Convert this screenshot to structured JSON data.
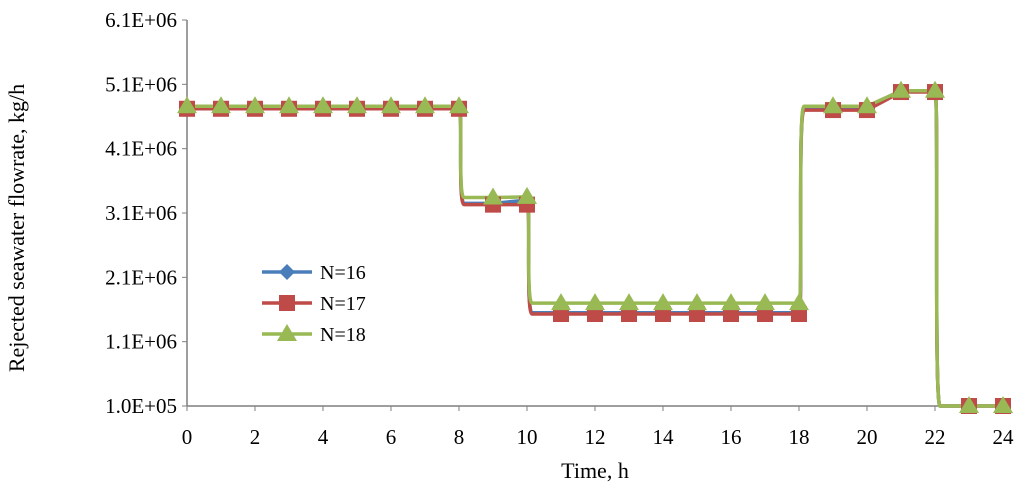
{
  "chart_data": {
    "type": "line",
    "title": "",
    "xlabel": "Time, h",
    "ylabel": "Rejected seawater flowrate, kg/h",
    "xlim": [
      0,
      24
    ],
    "ylim": [
      100000,
      6100000
    ],
    "x_ticks": [
      "0",
      "2",
      "4",
      "6",
      "8",
      "10",
      "12",
      "14",
      "16",
      "18",
      "20",
      "22",
      "24"
    ],
    "y_ticks": [
      "1.0E+05",
      "1.1E+06",
      "2.1E+06",
      "3.1E+06",
      "4.1E+06",
      "5.1E+06",
      "6.1E+06"
    ],
    "grid": false,
    "legend_position": "left-middle",
    "x": [
      0,
      1,
      2,
      3,
      4,
      5,
      6,
      7,
      8,
      9,
      10,
      11,
      12,
      13,
      14,
      15,
      16,
      17,
      18,
      19,
      20,
      21,
      22,
      23,
      24
    ],
    "series": [
      {
        "name": "N=16",
        "color": "#4a7ebb",
        "marker": "diamond",
        "values": [
          4750000,
          4750000,
          4750000,
          4750000,
          4750000,
          4750000,
          4750000,
          4750000,
          4750000,
          3250000,
          3300000,
          1550000,
          1550000,
          1550000,
          1550000,
          1550000,
          1550000,
          1550000,
          1550000,
          4750000,
          4750000,
          5000000,
          5000000,
          100000,
          100000
        ]
      },
      {
        "name": "N=17",
        "color": "#be4b48",
        "marker": "square",
        "values": [
          4720000,
          4720000,
          4720000,
          4720000,
          4720000,
          4720000,
          4720000,
          4720000,
          4720000,
          3230000,
          3230000,
          1530000,
          1530000,
          1530000,
          1530000,
          1530000,
          1530000,
          1530000,
          1530000,
          4700000,
          4700000,
          4980000,
          4980000,
          100000,
          100000
        ]
      },
      {
        "name": "N=18",
        "color": "#98b954",
        "marker": "triangle",
        "values": [
          4760000,
          4760000,
          4760000,
          4760000,
          4760000,
          4760000,
          4760000,
          4760000,
          4760000,
          3340000,
          3350000,
          1700000,
          1700000,
          1700000,
          1700000,
          1700000,
          1700000,
          1700000,
          1700000,
          4760000,
          4760000,
          5000000,
          5000000,
          100000,
          100000
        ]
      }
    ]
  }
}
